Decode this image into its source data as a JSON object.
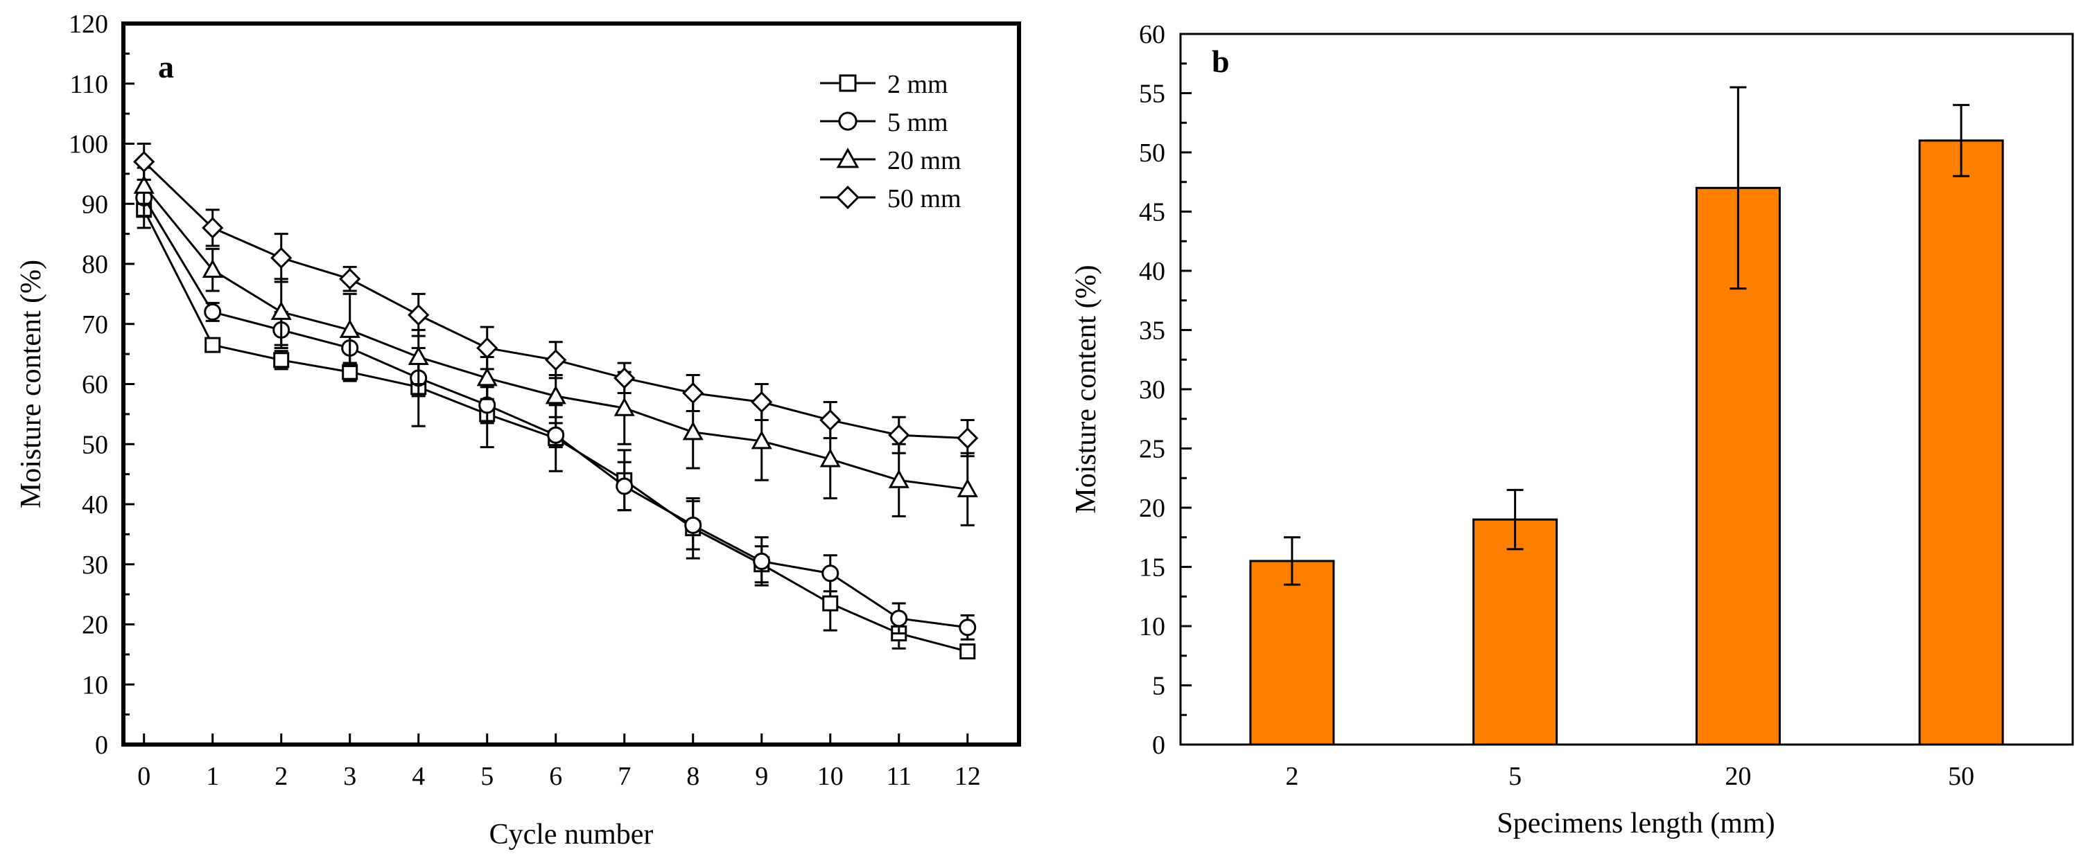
{
  "colors": {
    "bar_fill": "#ff8000",
    "ink": "#000000",
    "background": "#ffffff"
  },
  "chart_data": [
    {
      "type": "line",
      "panel_label": "a",
      "title": "",
      "xlabel": "Cycle number",
      "ylabel": "Moisture content (%)",
      "x": [
        0,
        1,
        2,
        3,
        4,
        5,
        6,
        7,
        8,
        9,
        10,
        11,
        12
      ],
      "xlim": [
        -0.3,
        12.75
      ],
      "ylim": [
        0,
        120
      ],
      "xticks": [
        "0",
        "1",
        "2",
        "3",
        "4",
        "5",
        "6",
        "7",
        "8",
        "9",
        "10",
        "11",
        "12"
      ],
      "yticks": [
        "0",
        "10",
        "20",
        "30",
        "40",
        "50",
        "60",
        "70",
        "80",
        "90",
        "100",
        "110",
        "120"
      ],
      "legend_position": "top-right",
      "grid": false,
      "series": [
        {
          "name": "2 mm",
          "marker": "square",
          "values": [
            89,
            66.5,
            64,
            62,
            59.5,
            55,
            51,
            44,
            36,
            30,
            23.5,
            18.5,
            15.5
          ],
          "errors": [
            3,
            1,
            1.5,
            1.5,
            6.5,
            5.5,
            5.5,
            5,
            5,
            3,
            4.5,
            2.5,
            1
          ]
        },
        {
          "name": "5 mm",
          "marker": "circle",
          "values": [
            91,
            72,
            69,
            66,
            61,
            56.5,
            51.5,
            43,
            36.5,
            30.5,
            28.5,
            21,
            19.5
          ],
          "errors": [
            3,
            1.5,
            3,
            2.5,
            3,
            3,
            2,
            4,
            4,
            4,
            3,
            2.5,
            2
          ]
        },
        {
          "name": "20 mm",
          "marker": "triangle",
          "values": [
            93,
            79,
            72,
            69,
            64.5,
            61,
            58,
            56,
            52,
            50.5,
            47.5,
            44,
            42.5
          ],
          "errors": [
            3,
            3.5,
            5.5,
            6,
            4.5,
            3.5,
            3.5,
            6,
            6,
            6.5,
            6.5,
            6,
            6
          ]
        },
        {
          "name": "50 mm",
          "marker": "diamond",
          "values": [
            97,
            86,
            81,
            77.5,
            71.5,
            66,
            64,
            61,
            58.5,
            57,
            54,
            51.5,
            51
          ],
          "errors": [
            3,
            3,
            4,
            2,
            3.5,
            3.5,
            3,
            2.5,
            3,
            3,
            3,
            3,
            3
          ]
        }
      ]
    },
    {
      "type": "bar",
      "panel_label": "b",
      "title": "",
      "xlabel": "Specimens length (mm)",
      "ylabel": "Moisture content (%)",
      "categories": [
        "2",
        "5",
        "20",
        "50"
      ],
      "values": [
        15.5,
        19,
        47,
        51
      ],
      "errors": [
        2,
        2.5,
        8.5,
        3
      ],
      "ylim": [
        0,
        60
      ],
      "yticks": [
        "0",
        "5",
        "10",
        "15",
        "20",
        "25",
        "30",
        "35",
        "40",
        "45",
        "50",
        "55",
        "60"
      ],
      "grid": false
    }
  ]
}
